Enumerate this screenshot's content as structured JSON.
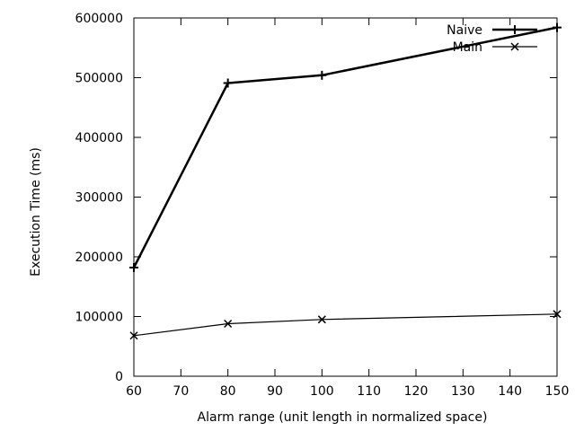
{
  "chart_data": {
    "type": "line",
    "xlabel": "Alarm range (unit length in normalized space)",
    "ylabel": "Execution Time (ms)",
    "xlim": [
      60,
      150
    ],
    "ylim": [
      0,
      600000
    ],
    "x_ticks": [
      60,
      70,
      80,
      90,
      100,
      110,
      120,
      130,
      140,
      150
    ],
    "y_ticks": [
      0,
      100000,
      200000,
      300000,
      400000,
      500000,
      600000
    ],
    "grid": false,
    "legend": "top-right",
    "series": [
      {
        "name": "Naive",
        "marker": "plus",
        "color": "#000000",
        "line_weight": "thick",
        "x": [
          60,
          80,
          100,
          150
        ],
        "y": [
          182000,
          491000,
          504000,
          584000
        ]
      },
      {
        "name": "Main",
        "marker": "cross",
        "color": "#000000",
        "line_weight": "thin",
        "x": [
          60,
          80,
          100,
          150
        ],
        "y": [
          68000,
          88000,
          95000,
          104000
        ]
      }
    ]
  }
}
